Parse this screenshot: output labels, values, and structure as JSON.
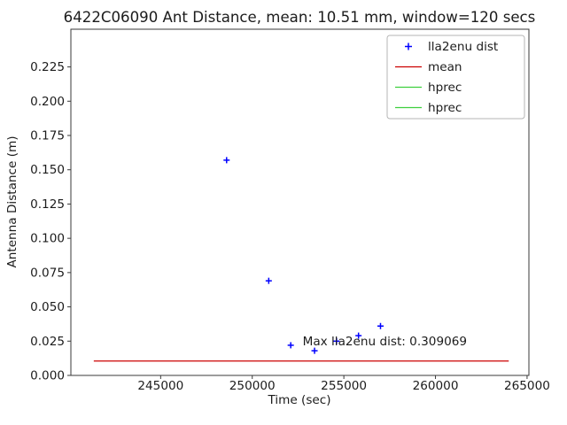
{
  "chart_data": {
    "type": "scatter",
    "title": "6422C06090 Ant Distance, mean: 10.51 mm, window=120 secs",
    "xlabel": "Time (sec)",
    "ylabel": "Antenna Distance (m)",
    "xlim": [
      240100,
      265100
    ],
    "ylim": [
      0,
      0.2525
    ],
    "x_ticks": [
      245000,
      250000,
      255000,
      260000,
      265000
    ],
    "y_ticks": [
      0,
      0.025,
      0.05,
      0.075,
      0.1,
      0.125,
      0.15,
      0.175,
      0.2,
      0.225
    ],
    "grid": false,
    "legend_position": "upper right",
    "series": [
      {
        "name": "lla2enu dist",
        "kind": "scatter",
        "marker": "+",
        "color": "#0000ff",
        "x": [
          248600,
          250900,
          252100,
          253400,
          254600,
          255800,
          257000
        ],
        "y": [
          0.157,
          0.069,
          0.022,
          0.018,
          0.025,
          0.029,
          0.036
        ]
      },
      {
        "name": "mean",
        "kind": "line",
        "color": "#cc0000",
        "x": [
          241350,
          264000
        ],
        "y": [
          0.01051,
          0.01051
        ]
      },
      {
        "name": "hprec",
        "kind": "line",
        "color": "#3ecf3e",
        "x": [],
        "y": []
      },
      {
        "name": "hprec",
        "kind": "line",
        "color": "#3ecf3e",
        "x": [],
        "y": []
      }
    ],
    "annotation": {
      "text": "Max lla2enu dist: 0.309069",
      "x": 252750,
      "y": 0.0245,
      "color": "#ff0000"
    }
  }
}
